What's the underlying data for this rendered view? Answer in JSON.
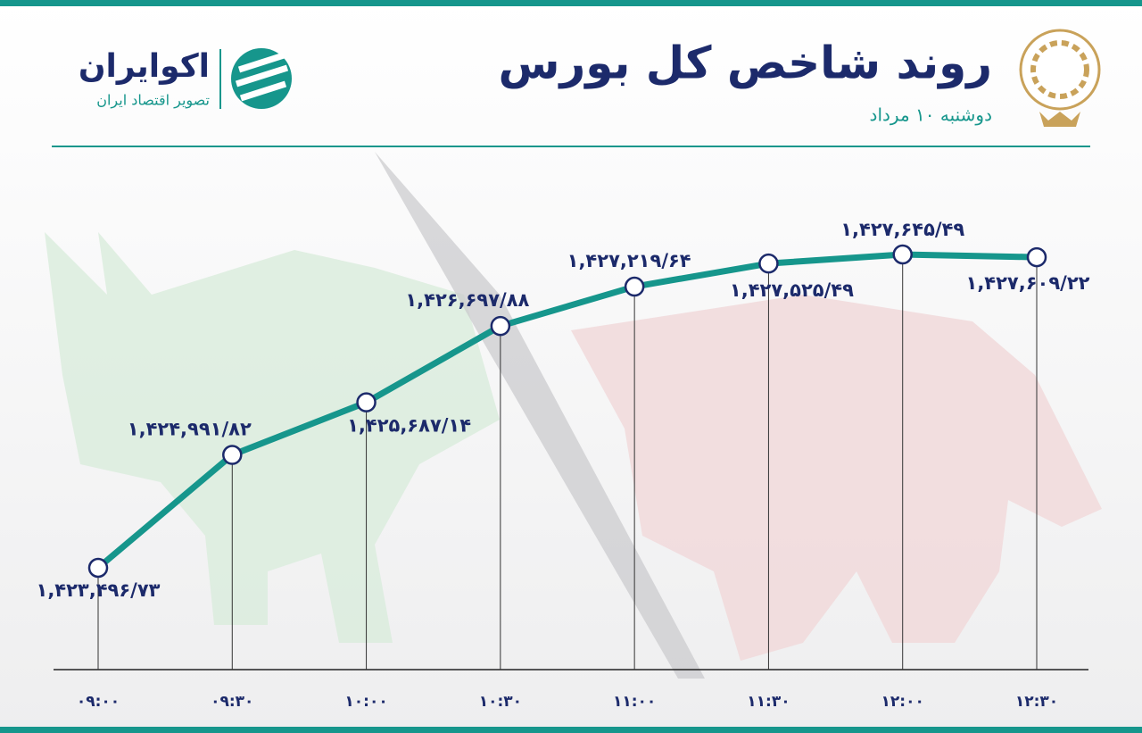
{
  "chart_data": {
    "type": "line",
    "title": "روند شاخص کل بورس",
    "subtitle": "دوشنبه ۱۰ مرداد",
    "brand": "اکوایران",
    "brand_tagline": "تصویر اقتصاد ایران",
    "categories": [
      "۰۹:۰۰",
      "۰۹:۳۰",
      "۱۰:۰۰",
      "۱۰:۳۰",
      "۱۱:۰۰",
      "۱۱:۳۰",
      "۱۲:۰۰",
      "۱۲:۳۰"
    ],
    "values": [
      1423496.73,
      1424991.82,
      1425687.14,
      1426697.88,
      1427219.64,
      1427525.49,
      1427645.49,
      1427609.22
    ],
    "value_labels": [
      "۱,۴۲۳,۴۹۶/۷۳",
      "۱,۴۲۴,۹۹۱/۸۲",
      "۱,۴۲۵,۶۸۷/۱۴",
      "۱,۴۲۶,۶۹۷/۸۸",
      "۱,۴۲۷,۲۱۹/۶۴",
      "۱,۴۲۷,۵۲۵/۴۹",
      "۱,۴۲۷,۶۴۵/۴۹",
      "۱,۴۲۷,۶۰۹/۲۲"
    ],
    "color": "#16968c"
  }
}
